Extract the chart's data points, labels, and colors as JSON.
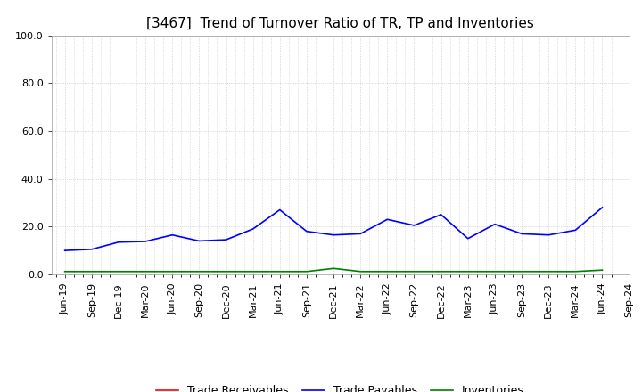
{
  "title": "[3467]  Trend of Turnover Ratio of TR, TP and Inventories",
  "x_labels": [
    "Jun-19",
    "Sep-19",
    "Dec-19",
    "Mar-20",
    "Jun-20",
    "Sep-20",
    "Dec-20",
    "Mar-21",
    "Jun-21",
    "Sep-21",
    "Dec-21",
    "Mar-22",
    "Jun-22",
    "Sep-22",
    "Dec-22",
    "Mar-23",
    "Jun-23",
    "Sep-23",
    "Dec-23",
    "Mar-24",
    "Jun-24",
    "Sep-24"
  ],
  "trade_payables": [
    10.0,
    10.5,
    13.5,
    13.8,
    16.5,
    14.0,
    14.5,
    19.0,
    27.0,
    18.0,
    16.5,
    17.0,
    23.0,
    20.5,
    25.0,
    15.0,
    21.0,
    17.0,
    16.5,
    18.5,
    28.0,
    null
  ],
  "trade_receivables": [
    0.0,
    0.0,
    0.0,
    0.0,
    0.0,
    0.0,
    0.0,
    0.0,
    0.0,
    0.0,
    0.0,
    0.0,
    0.0,
    0.0,
    0.0,
    0.0,
    0.0,
    0.0,
    0.0,
    0.0,
    0.0,
    null
  ],
  "inventories": [
    1.2,
    1.2,
    1.2,
    1.2,
    1.2,
    1.2,
    1.2,
    1.2,
    1.2,
    1.2,
    2.5,
    1.2,
    1.2,
    1.2,
    1.2,
    1.2,
    1.2,
    1.2,
    1.2,
    1.2,
    1.8,
    null
  ],
  "color_tr": "#ff0000",
  "color_tp": "#0000ff",
  "color_inv": "#008000",
  "ylim": [
    0.0,
    100.0
  ],
  "yticks": [
    0.0,
    20.0,
    40.0,
    60.0,
    80.0,
    100.0
  ],
  "ytick_labels": [
    "0.0",
    "20.0",
    "40.0",
    "60.0",
    "80.0",
    "100.0"
  ],
  "legend_labels": [
    "Trade Receivables",
    "Trade Payables",
    "Inventories"
  ],
  "title_fontsize": 11,
  "tick_fontsize": 8,
  "legend_fontsize": 9,
  "background_color": "#ffffff",
  "grid_color": "#bbbbbb",
  "spine_color": "#999999"
}
